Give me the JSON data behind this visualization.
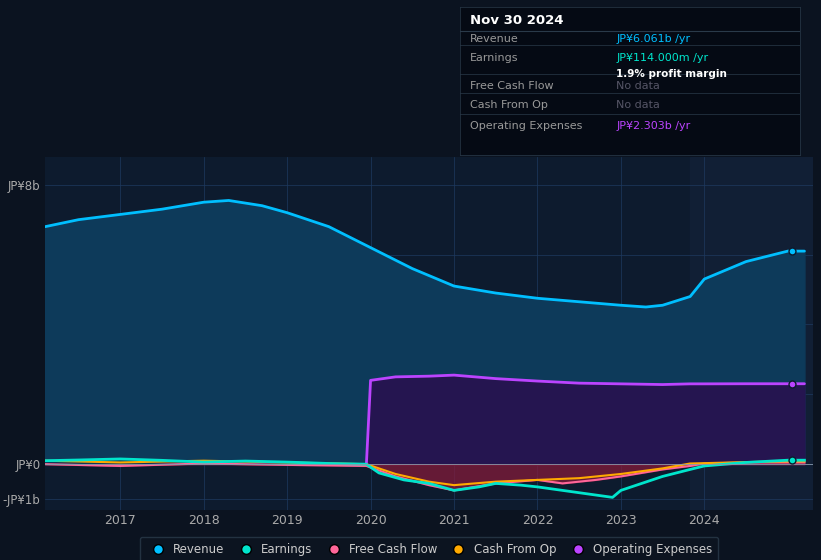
{
  "bg_color": "#0b1320",
  "plot_bg_color": "#0d1b2e",
  "grid_color": "#1e3a5f",
  "title_box": {
    "date": "Nov 30 2024",
    "rows": [
      {
        "label": "Revenue",
        "value": "JP¥6.061b /yr",
        "value_color": "#00bfff",
        "sub": null
      },
      {
        "label": "Earnings",
        "value": "JP¥114.000m /yr",
        "value_color": "#00e5cc",
        "sub": "1.9% profit margin"
      },
      {
        "label": "Free Cash Flow",
        "value": "No data",
        "value_color": "#555566",
        "sub": null
      },
      {
        "label": "Cash From Op",
        "value": "No data",
        "value_color": "#555566",
        "sub": null
      },
      {
        "label": "Operating Expenses",
        "value": "JP¥2.303b /yr",
        "value_color": "#bb44ff",
        "sub": null
      }
    ]
  },
  "ylim": [
    -1300000000.0,
    8800000000.0
  ],
  "xticks": [
    2017,
    2018,
    2019,
    2020,
    2021,
    2022,
    2023,
    2024
  ],
  "xmin": 2016.1,
  "xmax": 2025.3,
  "highlight_x_start": 2023.83,
  "revenue": {
    "x": [
      2016.1,
      2016.5,
      2017.0,
      2017.5,
      2018.0,
      2018.3,
      2018.7,
      2019.0,
      2019.5,
      2020.0,
      2020.5,
      2021.0,
      2021.5,
      2022.0,
      2022.5,
      2023.0,
      2023.3,
      2023.5,
      2023.83,
      2024.0,
      2024.5,
      2025.0,
      2025.2
    ],
    "y": [
      6800000000.0,
      7000000000.0,
      7150000000.0,
      7300000000.0,
      7500000000.0,
      7550000000.0,
      7400000000.0,
      7200000000.0,
      6800000000.0,
      6200000000.0,
      5600000000.0,
      5100000000.0,
      4900000000.0,
      4750000000.0,
      4650000000.0,
      4550000000.0,
      4500000000.0,
      4550000000.0,
      4800000000.0,
      5300000000.0,
      5800000000.0,
      6100000000.0,
      6100000000.0
    ],
    "color": "#00bfff",
    "fill_color": "#0d3a5a",
    "lw": 2.0
  },
  "operating_expenses": {
    "x": [
      2019.95,
      2020.0,
      2020.3,
      2020.7,
      2021.0,
      2021.5,
      2022.0,
      2022.5,
      2023.0,
      2023.5,
      2023.83,
      2024.0,
      2024.5,
      2025.0,
      2025.2
    ],
    "y": [
      0,
      2400000000.0,
      2500000000.0,
      2520000000.0,
      2550000000.0,
      2450000000.0,
      2380000000.0,
      2320000000.0,
      2300000000.0,
      2280000000.0,
      2300000000.0,
      2300000000.0,
      2303000000.0,
      2303000000.0,
      2303000000.0
    ],
    "color": "#bb44ff",
    "fill_color": "#251550",
    "lw": 2.0
  },
  "earnings": {
    "x": [
      2016.1,
      2016.5,
      2017.0,
      2017.5,
      2018.0,
      2018.5,
      2019.0,
      2019.5,
      2019.95,
      2020.1,
      2020.4,
      2020.7,
      2021.0,
      2021.3,
      2021.5,
      2021.8,
      2022.0,
      2022.3,
      2022.6,
      2022.9,
      2023.0,
      2023.5,
      2023.83,
      2024.0,
      2024.5,
      2025.0,
      2025.2
    ],
    "y": [
      100000000.0,
      120000000.0,
      150000000.0,
      110000000.0,
      60000000.0,
      90000000.0,
      60000000.0,
      20000000.0,
      0,
      -250000000.0,
      -450000000.0,
      -550000000.0,
      -750000000.0,
      -650000000.0,
      -550000000.0,
      -600000000.0,
      -650000000.0,
      -750000000.0,
      -850000000.0,
      -950000000.0,
      -750000000.0,
      -350000000.0,
      -150000000.0,
      -50000000.0,
      50000000.0,
      114000000.0,
      114000000.0
    ],
    "color": "#00e5cc",
    "lw": 2.0
  },
  "free_cash_flow": {
    "x": [
      2016.1,
      2017.0,
      2018.0,
      2019.0,
      2019.95,
      2020.3,
      2020.7,
      2021.0,
      2021.5,
      2022.0,
      2022.3,
      2022.7,
      2023.0,
      2023.5,
      2023.83,
      2024.0,
      2024.5,
      2025.0,
      2025.2
    ],
    "y": [
      0,
      -50000000.0,
      20000000.0,
      -20000000.0,
      -50000000.0,
      -350000000.0,
      -600000000.0,
      -750000000.0,
      -550000000.0,
      -450000000.0,
      -550000000.0,
      -450000000.0,
      -350000000.0,
      -150000000.0,
      -50000000.0,
      20000000.0,
      50000000.0,
      50000000.0,
      50000000.0
    ],
    "color": "#ff6699",
    "lw": 1.5
  },
  "cash_from_op": {
    "x": [
      2016.1,
      2017.0,
      2018.0,
      2019.0,
      2019.95,
      2020.3,
      2020.7,
      2021.0,
      2021.5,
      2022.0,
      2022.5,
      2023.0,
      2023.5,
      2023.83,
      2024.0,
      2024.5,
      2025.0,
      2025.2
    ],
    "y": [
      100000000.0,
      50000000.0,
      100000000.0,
      50000000.0,
      0,
      -280000000.0,
      -500000000.0,
      -600000000.0,
      -500000000.0,
      -450000000.0,
      -400000000.0,
      -280000000.0,
      -120000000.0,
      20000000.0,
      30000000.0,
      60000000.0,
      80000000.0,
      80000000.0
    ],
    "color": "#ffaa00",
    "lw": 1.5
  },
  "legend": [
    {
      "label": "Revenue",
      "color": "#00bfff"
    },
    {
      "label": "Earnings",
      "color": "#00e5cc"
    },
    {
      "label": "Free Cash Flow",
      "color": "#ff6699"
    },
    {
      "label": "Cash From Op",
      "color": "#ffaa00"
    },
    {
      "label": "Operating Expenses",
      "color": "#bb44ff"
    }
  ]
}
